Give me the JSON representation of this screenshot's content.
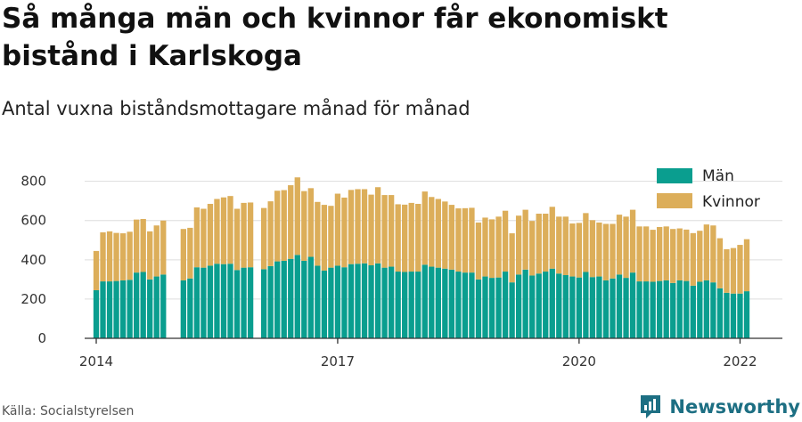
{
  "title": "Så många män och kvinnor får ekonomiskt bistånd i Karlskoga",
  "subtitle": "Antal vuxna biståndsmottagare månad för månad",
  "source": "Källa: Socialstyrelsen",
  "brand": {
    "name": "Newsworthy",
    "icon": "newsworthy-logo-icon",
    "color": "#1d6f83"
  },
  "colors": {
    "men": "#0a9e8f",
    "women": "#dcae5a",
    "grid": "#dddddd",
    "axis": "#333333"
  },
  "legend": {
    "men": "Män",
    "women": "Kvinnor"
  },
  "chart_data": {
    "type": "bar",
    "stacked": true,
    "x_start": "2014-01",
    "x_end": "2022-01",
    "xticks": [
      "2014",
      "2017",
      "2020",
      "2022"
    ],
    "ylim": [
      0,
      880
    ],
    "yticks": [
      0,
      200,
      400,
      600,
      800
    ],
    "grid": true,
    "legend_position": "top-right",
    "missing_months": [
      "2014-11",
      "2014-12",
      "2015-12"
    ],
    "series": [
      {
        "name": "Män",
        "values": [
          245,
          290,
          290,
          292,
          295,
          298,
          335,
          338,
          300,
          315,
          325,
          null,
          null,
          295,
          305,
          362,
          360,
          370,
          380,
          378,
          380,
          348,
          360,
          362,
          null,
          352,
          368,
          392,
          395,
          405,
          425,
          395,
          415,
          370,
          345,
          360,
          370,
          362,
          378,
          380,
          382,
          372,
          382,
          360,
          365,
          340,
          338,
          340,
          340,
          375,
          365,
          360,
          355,
          350,
          340,
          335,
          335,
          300,
          315,
          308,
          310,
          340,
          285,
          325,
          350,
          320,
          330,
          340,
          355,
          330,
          322,
          315,
          310,
          338,
          312,
          315,
          295,
          305,
          325,
          308,
          335,
          290,
          290,
          288,
          292,
          295,
          282,
          295,
          292,
          268,
          288,
          295,
          285,
          255,
          232,
          228,
          228,
          240
        ]
      },
      {
        "name": "Kvinnor",
        "values": [
          200,
          250,
          255,
          245,
          240,
          245,
          270,
          270,
          245,
          260,
          275,
          null,
          null,
          262,
          258,
          305,
          300,
          315,
          330,
          340,
          345,
          312,
          330,
          330,
          null,
          312,
          330,
          360,
          360,
          375,
          395,
          355,
          350,
          325,
          335,
          315,
          367,
          355,
          378,
          380,
          378,
          360,
          388,
          370,
          365,
          343,
          343,
          350,
          345,
          373,
          355,
          350,
          342,
          330,
          322,
          328,
          330,
          290,
          300,
          298,
          310,
          310,
          250,
          300,
          305,
          278,
          305,
          295,
          315,
          290,
          298,
          270,
          278,
          300,
          290,
          275,
          288,
          278,
          305,
          312,
          320,
          280,
          280,
          265,
          275,
          275,
          275,
          265,
          262,
          268,
          260,
          285,
          290,
          255,
          222,
          232,
          248,
          265
        ]
      }
    ]
  }
}
